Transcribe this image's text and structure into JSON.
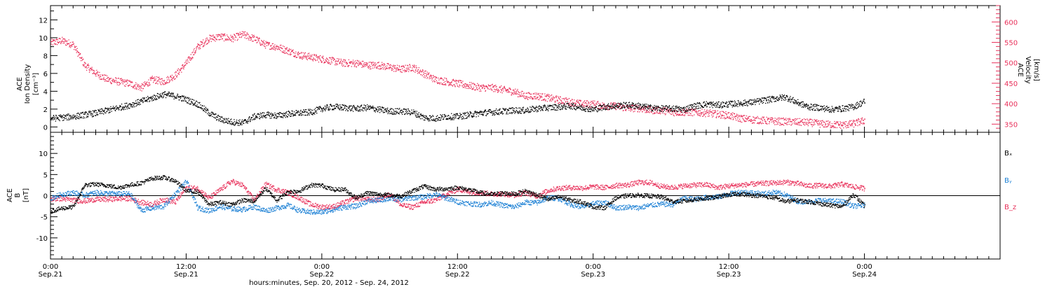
{
  "colors": {
    "black": "#000000",
    "red": "#e8305a",
    "blue": "#1a7fd4"
  },
  "time_axis": {
    "label": "hours:minutes, Sep. 20, 2012 - Sep. 24, 2012",
    "range_hours": [
      0,
      84
    ],
    "data_end_hours": 72,
    "major_ticks": [
      {
        "t": 0,
        "time": "0:00",
        "date": "Sep.21"
      },
      {
        "t": 12,
        "time": "12:00",
        "date": "Sep.21"
      },
      {
        "t": 24,
        "time": "0:00",
        "date": "Sep.22"
      },
      {
        "t": 36,
        "time": "12:00",
        "date": "Sep.22"
      },
      {
        "t": 48,
        "time": "0:00",
        "date": "Sep.23"
      },
      {
        "t": 60,
        "time": "12:00",
        "date": "Sep.23"
      },
      {
        "t": 72,
        "time": "0:00",
        "date": "Sep.24"
      }
    ]
  },
  "chart_data": [
    {
      "type": "scatter",
      "panel": "top",
      "ylabel_left": [
        "ACE",
        "Ion Density",
        "[cm⁻³]"
      ],
      "ylabel_right": [
        "ACE",
        "Velocity",
        "[km/s]"
      ],
      "ylim_left": [
        -0.6,
        13.6
      ],
      "ylim_right": [
        330,
        640
      ],
      "yticks_left": [
        0,
        2,
        4,
        6,
        8,
        10,
        12
      ],
      "yticks_right": [
        350,
        400,
        450,
        500,
        550,
        600
      ],
      "series": [
        {
          "axis": "left",
          "color": "black",
          "x": [
            0,
            1,
            2,
            3,
            4,
            5,
            6,
            7,
            8,
            9,
            10,
            11,
            12,
            13,
            14,
            15,
            16,
            17,
            18,
            19,
            20,
            21,
            22,
            23,
            24,
            25,
            26,
            27,
            28,
            29,
            30,
            31,
            32,
            33,
            34,
            35,
            36,
            37,
            38,
            39,
            40,
            41,
            42,
            43,
            44,
            45,
            46,
            47,
            48,
            49,
            50,
            51,
            52,
            53,
            54,
            55,
            56,
            57,
            58,
            59,
            60,
            61,
            62,
            63,
            64,
            65,
            66,
            67,
            68,
            69,
            70,
            71,
            72
          ],
          "y": [
            1.0,
            1.1,
            1.2,
            1.4,
            1.6,
            1.9,
            2.2,
            2.5,
            2.9,
            3.3,
            3.7,
            3.5,
            3.1,
            2.6,
            1.6,
            0.9,
            0.6,
            0.5,
            1.2,
            1.4,
            1.3,
            1.5,
            1.6,
            1.7,
            2.1,
            2.3,
            2.2,
            2.1,
            2.2,
            2.0,
            1.8,
            1.8,
            1.7,
            1.1,
            1.0,
            1.2,
            1.2,
            1.4,
            1.6,
            1.7,
            1.8,
            1.9,
            1.9,
            2.1,
            2.2,
            2.3,
            2.4,
            2.2,
            2.0,
            2.3,
            2.4,
            2.5,
            2.4,
            2.2,
            2.1,
            2.1,
            2.0,
            2.4,
            2.6,
            2.5,
            2.6,
            2.7,
            2.8,
            3.0,
            3.2,
            3.4,
            2.8,
            2.3,
            2.2,
            2.0,
            2.1,
            2.3,
            2.9
          ]
        },
        {
          "axis": "right",
          "color": "red",
          "x": [
            0,
            1,
            2,
            3,
            4,
            5,
            6,
            7,
            8,
            9,
            10,
            11,
            12,
            13,
            14,
            15,
            16,
            17,
            18,
            19,
            20,
            21,
            22,
            23,
            24,
            25,
            26,
            27,
            28,
            29,
            30,
            31,
            32,
            33,
            34,
            35,
            36,
            37,
            38,
            39,
            40,
            41,
            42,
            43,
            44,
            45,
            46,
            47,
            48,
            49,
            50,
            51,
            52,
            53,
            54,
            55,
            56,
            57,
            58,
            59,
            60,
            61,
            62,
            63,
            64,
            65,
            66,
            67,
            68,
            69,
            70,
            71,
            72
          ],
          "y": [
            550,
            555,
            545,
            495,
            475,
            460,
            455,
            450,
            440,
            460,
            455,
            470,
            500,
            540,
            560,
            565,
            560,
            570,
            560,
            545,
            540,
            530,
            520,
            515,
            510,
            505,
            500,
            500,
            495,
            495,
            490,
            485,
            490,
            475,
            460,
            455,
            450,
            445,
            440,
            440,
            435,
            430,
            420,
            420,
            415,
            410,
            405,
            400,
            400,
            395,
            395,
            390,
            390,
            385,
            385,
            380,
            380,
            380,
            378,
            375,
            372,
            365,
            362,
            360,
            358,
            357,
            356,
            355,
            352,
            350,
            349,
            352,
            360
          ]
        }
      ]
    },
    {
      "type": "scatter",
      "panel": "bottom",
      "ylabel_left": [
        "ACE",
        "B",
        "[nT]"
      ],
      "ylim": [
        -15,
        15
      ],
      "yticks": [
        -10,
        -5,
        0,
        5,
        10
      ],
      "zero_line": true,
      "series": [
        {
          "name": "Bₓ",
          "color": "black",
          "x": [
            0,
            1,
            2,
            3,
            4,
            5,
            6,
            7,
            8,
            9,
            10,
            11,
            12,
            13,
            14,
            15,
            16,
            17,
            18,
            19,
            20,
            21,
            22,
            23,
            24,
            25,
            26,
            27,
            28,
            29,
            30,
            31,
            32,
            33,
            34,
            35,
            36,
            37,
            38,
            39,
            40,
            41,
            42,
            43,
            44,
            45,
            46,
            47,
            48,
            49,
            50,
            51,
            52,
            53,
            54,
            55,
            56,
            57,
            58,
            59,
            60,
            61,
            62,
            63,
            64,
            65,
            66,
            67,
            68,
            69,
            70,
            71,
            72
          ],
          "y": [
            -3.6,
            -2.9,
            -2.6,
            2.6,
            2.8,
            2.5,
            2.0,
            2.6,
            3.1,
            4.2,
            4.4,
            3.6,
            1.2,
            1.0,
            -2.0,
            -1.5,
            -2.0,
            -1.0,
            -1.2,
            1.8,
            -1.0,
            1.0,
            1.2,
            2.6,
            2.5,
            1.5,
            1.6,
            -0.5,
            0.8,
            0.4,
            0.2,
            0.0,
            1.2,
            2.3,
            1.6,
            1.7,
            2.0,
            1.5,
            0.8,
            0.4,
            0.7,
            0.5,
            1.2,
            0.3,
            -0.8,
            -0.2,
            -1.0,
            -1.4,
            -2.6,
            -2.8,
            -0.4,
            0.1,
            0.2,
            0.0,
            -0.2,
            -1.3,
            -1.2,
            -0.8,
            -0.6,
            -0.2,
            0.3,
            0.5,
            0.2,
            0.0,
            -0.4,
            -1.3,
            -1.0,
            -1.3,
            -1.8,
            -2.2,
            -2.5,
            0.4,
            -2.4
          ]
        },
        {
          "name": "Bᵧ",
          "color": "blue",
          "x": [
            0,
            1,
            2,
            3,
            4,
            5,
            6,
            7,
            8,
            9,
            10,
            11,
            12,
            13,
            14,
            15,
            16,
            17,
            18,
            19,
            20,
            21,
            22,
            23,
            24,
            25,
            26,
            27,
            28,
            29,
            30,
            31,
            32,
            33,
            34,
            35,
            36,
            37,
            38,
            39,
            40,
            41,
            42,
            43,
            44,
            45,
            46,
            47,
            48,
            49,
            50,
            51,
            52,
            53,
            54,
            55,
            56,
            57,
            58,
            59,
            60,
            61,
            62,
            63,
            64,
            65,
            66,
            67,
            68,
            69,
            70,
            71,
            72
          ],
          "y": [
            -0.5,
            0.4,
            0.8,
            0.2,
            0.8,
            0.6,
            0.5,
            0.5,
            -3.4,
            -2.8,
            -2.5,
            0.5,
            3.5,
            -2.8,
            -3.5,
            -2.5,
            -3.0,
            -3.2,
            -2.5,
            -3.5,
            -2.8,
            -2.2,
            -3.5,
            -3.8,
            -3.8,
            -3.2,
            -2.6,
            -2.4,
            -1.2,
            -1.0,
            -0.6,
            -0.8,
            -0.4,
            -0.2,
            0.4,
            -0.5,
            -1.4,
            -1.8,
            -2.0,
            -1.6,
            -2.2,
            -2.6,
            -1.5,
            -1.6,
            -0.4,
            -0.6,
            -2.0,
            -2.6,
            -1.8,
            -1.5,
            -2.8,
            -2.6,
            -2.8,
            -2.2,
            -1.9,
            -2.0,
            -0.5,
            -0.8,
            -0.3,
            -0.2,
            0.5,
            1.0,
            0.8,
            0.5,
            0.9,
            0.3,
            -1.2,
            -1.4,
            -1.0,
            -1.2,
            -1.3,
            -2.4,
            -2.2
          ]
        },
        {
          "name": "B_z",
          "color": "red",
          "x": [
            0,
            1,
            2,
            3,
            4,
            5,
            6,
            7,
            8,
            9,
            10,
            11,
            12,
            13,
            14,
            15,
            16,
            17,
            18,
            19,
            20,
            21,
            22,
            23,
            24,
            25,
            26,
            27,
            28,
            29,
            30,
            31,
            32,
            33,
            34,
            35,
            36,
            37,
            38,
            39,
            40,
            41,
            42,
            43,
            44,
            45,
            46,
            47,
            48,
            49,
            50,
            51,
            52,
            53,
            54,
            55,
            56,
            57,
            58,
            59,
            60,
            61,
            62,
            63,
            64,
            65,
            66,
            67,
            68,
            69,
            70,
            71,
            72
          ],
          "y": [
            -0.7,
            -0.6,
            -1.0,
            -1.2,
            -0.8,
            -0.8,
            -0.6,
            -0.6,
            -1.5,
            -2.0,
            -0.8,
            -1.5,
            2.0,
            1.8,
            -0.5,
            1.5,
            3.5,
            2.5,
            -1.0,
            2.8,
            1.5,
            0.8,
            -0.5,
            -2.0,
            -2.6,
            -2.5,
            -1.5,
            -0.5,
            -0.8,
            -0.8,
            0.5,
            -2.2,
            -2.6,
            -1.5,
            -1.0,
            0.4,
            1.6,
            1.0,
            0.8,
            0.5,
            0.5,
            0.2,
            0.8,
            0.0,
            1.3,
            1.9,
            2.0,
            1.9,
            2.2,
            2.0,
            2.5,
            2.6,
            3.2,
            3.2,
            2.3,
            2.0,
            2.4,
            2.6,
            2.7,
            2.0,
            2.4,
            2.6,
            2.8,
            3.0,
            3.1,
            3.3,
            3.0,
            2.4,
            2.5,
            2.3,
            2.8,
            2.2,
            1.8
          ]
        }
      ]
    }
  ]
}
